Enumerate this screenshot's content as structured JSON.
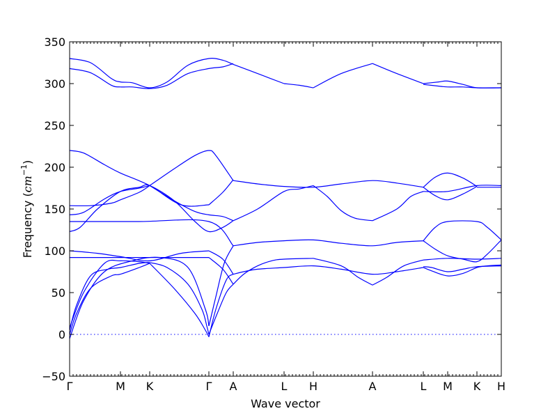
{
  "chart_data": {
    "type": "line",
    "title": "",
    "xlabel": "Wave vector",
    "ylabel": "Frequency (",
    "ylabel_math": "cm",
    "ylabel_exp": "−1",
    "ylabel_close": ")",
    "ylim": [
      -50,
      350
    ],
    "xlim": [
      0,
      620
    ],
    "yticks": [
      -50,
      0,
      50,
      100,
      150,
      200,
      250,
      300,
      350
    ],
    "ytick_labels": [
      "−50",
      "0",
      "50",
      "100",
      "150",
      "200",
      "250",
      "300",
      "350"
    ],
    "high_symmetry_points": [
      {
        "label": "Γ",
        "x": 0
      },
      {
        "label": "M",
        "x": 73
      },
      {
        "label": "K",
        "x": 115
      },
      {
        "label": "Γ",
        "x": 200
      },
      {
        "label": "A",
        "x": 235
      },
      {
        "label": "L",
        "x": 308
      },
      {
        "label": "H",
        "x": 350
      },
      {
        "label": "A",
        "x": 435
      },
      {
        "label": "L",
        "x": 508
      },
      {
        "label": "M",
        "x": 543
      },
      {
        "label": "K",
        "x": 585
      },
      {
        "label": "H",
        "x": 620
      }
    ],
    "zero_line": 0,
    "grid": false,
    "colors": {
      "bands": "#0000ff",
      "axes": "#000000",
      "zero_line": "#0000ff"
    },
    "series": [
      {
        "x": [
          0,
          30,
          60,
          73,
          90,
          115,
          140,
          170,
          200,
          220,
          235
        ],
        "values": [
          330,
          325,
          306,
          302,
          301,
          295,
          302,
          322,
          330,
          328,
          323
        ]
      },
      {
        "x": [
          235,
          270,
          308
        ],
        "values": [
          323,
          312,
          300
        ]
      },
      {
        "x": [
          308,
          330,
          350
        ],
        "values": [
          300,
          298,
          295
        ]
      },
      {
        "x": [
          350,
          390,
          435
        ],
        "values": [
          295,
          312,
          324
        ]
      },
      {
        "x": [
          435,
          470,
          508
        ],
        "values": [
          324,
          312,
          300
        ]
      },
      {
        "x": [
          508,
          530,
          543,
          565,
          585,
          620
        ],
        "values": [
          300,
          302,
          303,
          299,
          295,
          295
        ]
      },
      {
        "x": [
          0,
          30,
          60,
          73,
          90,
          115,
          140,
          170,
          200,
          220,
          235
        ],
        "values": [
          318,
          313,
          298,
          296,
          296,
          294,
          298,
          312,
          318,
          320,
          324
        ]
      },
      {
        "x": [
          508,
          530,
          543,
          565,
          585,
          620
        ],
        "values": [
          299,
          297,
          296,
          296,
          295,
          295
        ]
      },
      {
        "x": [
          0,
          20,
          50,
          73,
          115,
          160,
          200
        ],
        "values": [
          220,
          217,
          203,
          193,
          178,
          155,
          155
        ]
      },
      {
        "x": [
          200,
          220,
          235
        ],
        "values": [
          155,
          170,
          185
        ]
      },
      {
        "x": [
          115,
          150,
          180,
          200,
          210,
          235
        ],
        "values": [
          178,
          198,
          214,
          220,
          214,
          184
        ]
      },
      {
        "x": [
          235,
          270,
          308,
          350,
          390,
          435,
          470,
          508
        ],
        "values": [
          184,
          180,
          177,
          176,
          180,
          184,
          181,
          176
        ]
      },
      {
        "x": [
          508,
          525,
          543,
          565,
          585
        ],
        "values": [
          176,
          188,
          193,
          187,
          177
        ]
      },
      {
        "x": [
          508,
          525,
          543,
          565,
          585
        ],
        "values": [
          176,
          166,
          161,
          168,
          177
        ]
      },
      {
        "x": [
          508,
          543,
          585,
          620
        ],
        "values": [
          171,
          171,
          178,
          178
        ]
      },
      {
        "x": [
          585,
          620
        ],
        "values": [
          176,
          176
        ]
      },
      {
        "x": [
          0,
          30,
          60,
          73,
          100,
          115
        ],
        "values": [
          154,
          154,
          157,
          161,
          170,
          178
        ]
      },
      {
        "x": [
          0,
          20,
          50,
          73,
          100,
          115
        ],
        "values": [
          143,
          146,
          162,
          171,
          175,
          178
        ]
      },
      {
        "x": [
          0,
          15,
          40,
          73,
          100,
          115,
          150,
          180,
          200,
          220,
          235
        ],
        "values": [
          123,
          128,
          150,
          171,
          176,
          178,
          160,
          135,
          123,
          128,
          136
        ]
      },
      {
        "x": [
          115,
          150,
          180,
          200,
          220,
          235
        ],
        "values": [
          178,
          160,
          147,
          143,
          141,
          136
        ]
      },
      {
        "x": [
          235,
          270,
          308,
          330,
          350
        ],
        "values": [
          136,
          150,
          171,
          174,
          178
        ]
      },
      {
        "x": [
          350,
          370,
          390,
          410,
          435
        ],
        "values": [
          178,
          165,
          148,
          139,
          136
        ]
      },
      {
        "x": [
          435,
          470,
          490,
          508
        ],
        "values": [
          136,
          150,
          165,
          171
        ]
      },
      {
        "x": [
          0,
          100,
          200,
          235
        ],
        "values": [
          135,
          135,
          135,
          106
        ]
      },
      {
        "x": [
          235,
          270,
          308,
          350,
          390,
          435,
          470,
          508
        ],
        "values": [
          106,
          110,
          112,
          113,
          109,
          106,
          110,
          112
        ]
      },
      {
        "x": [
          508,
          525,
          543,
          585,
          600,
          620
        ],
        "values": [
          112,
          128,
          135,
          135,
          128,
          113
        ]
      },
      {
        "x": [
          508,
          525,
          543,
          565,
          585,
          600,
          620
        ],
        "values": [
          112,
          102,
          94,
          90,
          87,
          96,
          113
        ]
      },
      {
        "x": [
          0,
          40,
          73,
          115,
          160,
          200
        ],
        "values": [
          100,
          97,
          93,
          88,
          97,
          100
        ]
      },
      {
        "x": [
          0,
          73,
          115,
          200
        ],
        "values": [
          92,
          92,
          92,
          92
        ]
      },
      {
        "x": [
          200,
          220,
          235
        ],
        "values": [
          100,
          90,
          72
        ]
      },
      {
        "x": [
          200,
          220,
          235
        ],
        "values": [
          92,
          78,
          60
        ]
      },
      {
        "x": [
          235,
          250,
          270,
          308,
          350,
          390,
          435,
          470,
          508
        ],
        "values": [
          72,
          75,
          78,
          80,
          82,
          78,
          72,
          75,
          80
        ]
      },
      {
        "x": [
          235,
          250,
          270,
          290,
          308,
          350
        ],
        "values": [
          60,
          72,
          82,
          88,
          90,
          91
        ]
      },
      {
        "x": [
          350,
          390,
          415,
          435
        ],
        "values": [
          91,
          82,
          68,
          59
        ]
      },
      {
        "x": [
          435,
          455,
          480,
          508
        ],
        "values": [
          59,
          68,
          82,
          89
        ]
      },
      {
        "x": [
          508,
          543,
          585,
          620
        ],
        "values": [
          89,
          91,
          90,
          91
        ]
      },
      {
        "x": [
          508,
          520,
          543,
          565,
          585,
          620
        ],
        "values": [
          81,
          80,
          75,
          78,
          81,
          82
        ]
      },
      {
        "x": [
          508,
          520,
          543,
          565,
          585,
          600,
          620
        ],
        "values": [
          80,
          76,
          70,
          73,
          80,
          82,
          83
        ]
      },
      {
        "x": [
          0,
          10,
          30,
          60,
          73,
          100,
          115
        ],
        "values": [
          0,
          25,
          55,
          70,
          72,
          80,
          85
        ]
      },
      {
        "x": [
          0,
          10,
          30,
          55,
          73,
          100,
          115
        ],
        "values": [
          5,
          35,
          70,
          78,
          80,
          85,
          86
        ]
      },
      {
        "x": [
          0,
          20,
          50,
          73,
          100,
          115
        ],
        "values": [
          8,
          50,
          85,
          88,
          87,
          85
        ]
      },
      {
        "x": [
          115,
          150,
          180,
          195,
          200
        ],
        "values": [
          85,
          55,
          25,
          5,
          -3
        ]
      },
      {
        "x": [
          115,
          140,
          170,
          190,
          197,
          200
        ],
        "values": [
          86,
          80,
          60,
          30,
          10,
          0
        ]
      },
      {
        "x": [
          0,
          20,
          50,
          90,
          130,
          170,
          195,
          200
        ],
        "values": [
          -5,
          40,
          75,
          88,
          92,
          80,
          30,
          10
        ]
      },
      {
        "x": [
          200,
          210,
          225,
          235
        ],
        "values": [
          -3,
          30,
          65,
          72
        ]
      },
      {
        "x": [
          200,
          212,
          225,
          235
        ],
        "values": [
          0,
          25,
          50,
          60
        ]
      },
      {
        "x": [
          200,
          210,
          222,
          235
        ],
        "values": [
          10,
          45,
          85,
          106
        ]
      }
    ]
  }
}
